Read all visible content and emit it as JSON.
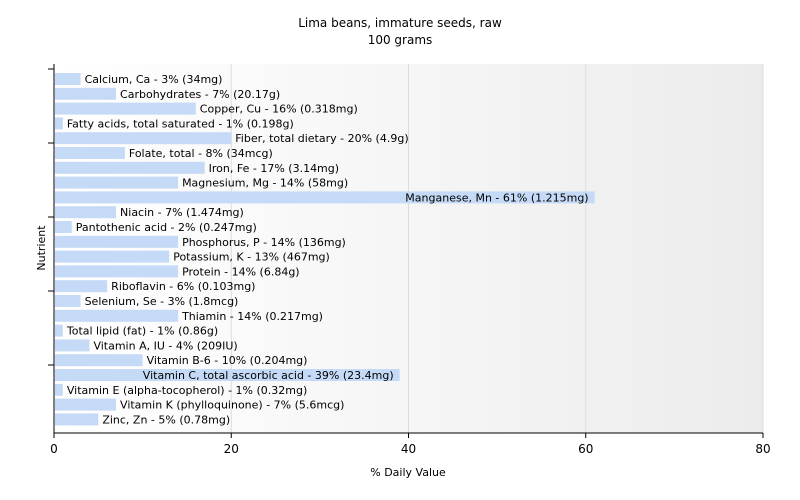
{
  "chart_data": {
    "type": "bar",
    "orientation": "horizontal",
    "title": "Lima beans, immature seeds, raw",
    "subtitle": "100 grams",
    "xlabel": "% Daily Value",
    "ylabel": "Nutrient",
    "xlim": [
      0,
      80
    ],
    "xticks": [
      "0",
      "20",
      "40",
      "60",
      "80"
    ],
    "grid": true,
    "bar_color": "#c5daf6",
    "categories": [
      "Calcium, Ca",
      "Carbohydrates",
      "Copper, Cu",
      "Fatty acids, total saturated",
      "Fiber, total dietary",
      "Folate, total",
      "Iron, Fe",
      "Magnesium, Mg",
      "Manganese, Mn",
      "Niacin",
      "Pantothenic acid",
      "Phosphorus, P",
      "Potassium, K",
      "Protein",
      "Riboflavin",
      "Selenium, Se",
      "Thiamin",
      "Total lipid (fat)",
      "Vitamin A, IU",
      "Vitamin B-6",
      "Vitamin C, total ascorbic acid",
      "Vitamin E (alpha-tocopherol)",
      "Vitamin K (phylloquinone)",
      "Zinc, Zn"
    ],
    "values": [
      3,
      7,
      16,
      1,
      20,
      8,
      17,
      14,
      61,
      7,
      2,
      14,
      13,
      14,
      6,
      3,
      14,
      1,
      4,
      10,
      39,
      1,
      7,
      5
    ],
    "labels": [
      "Calcium, Ca - 3% (34mg)",
      "Carbohydrates - 7% (20.17g)",
      "Copper, Cu - 16% (0.318mg)",
      "Fatty acids, total saturated - 1% (0.198g)",
      "Fiber, total dietary - 20% (4.9g)",
      "Folate, total - 8% (34mcg)",
      "Iron, Fe - 17% (3.14mg)",
      "Magnesium, Mg - 14% (58mg)",
      "Manganese, Mn - 61% (1.215mg)",
      "Niacin - 7% (1.474mg)",
      "Pantothenic acid - 2% (0.247mg)",
      "Phosphorus, P - 14% (136mg)",
      "Potassium, K - 13% (467mg)",
      "Protein - 14% (6.84g)",
      "Riboflavin - 6% (0.103mg)",
      "Selenium, Se - 3% (1.8mcg)",
      "Thiamin - 14% (0.217mg)",
      "Total lipid (fat) - 1% (0.86g)",
      "Vitamin A, IU - 4% (209IU)",
      "Vitamin B-6 - 10% (0.204mg)",
      "Vitamin C, total ascorbic acid - 39% (23.4mg)",
      "Vitamin E (alpha-tocopherol) - 1% (0.32mg)",
      "Vitamin K (phylloquinone) - 7% (5.6mcg)",
      "Zinc, Zn - 5% (0.78mg)"
    ]
  }
}
